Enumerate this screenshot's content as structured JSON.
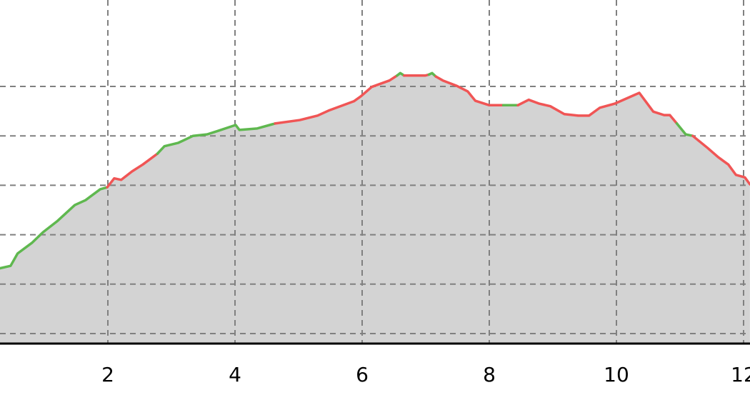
{
  "chart_data": {
    "type": "area",
    "title": "",
    "xlabel": "",
    "ylabel": "",
    "xlim": [
      0.3,
      12.1
    ],
    "ylim": [
      -0.2,
      6.75
    ],
    "grid": true,
    "x_ticks": [
      2,
      4,
      6,
      8,
      10,
      12
    ],
    "x_tick_labels": [
      "2",
      "4",
      "6",
      "8",
      "10",
      "12"
    ],
    "y_grid": [
      0,
      1,
      2,
      3,
      4,
      5
    ],
    "fill_color": "#d3d3d3",
    "colors": {
      "green": "#5fb84f",
      "red": "#f05555"
    },
    "segments": [
      {
        "color": "green",
        "points": [
          [
            0.3,
            1.32
          ],
          [
            0.47,
            1.37
          ],
          [
            0.58,
            1.62
          ],
          [
            0.81,
            1.84
          ],
          [
            0.98,
            2.05
          ],
          [
            1.2,
            2.27
          ],
          [
            1.48,
            2.6
          ],
          [
            1.65,
            2.7
          ],
          [
            1.88,
            2.92
          ],
          [
            1.99,
            2.96
          ]
        ]
      },
      {
        "color": "red",
        "points": [
          [
            1.99,
            2.96
          ],
          [
            2.1,
            3.14
          ],
          [
            2.21,
            3.11
          ],
          [
            2.38,
            3.28
          ],
          [
            2.55,
            3.42
          ],
          [
            2.78,
            3.64
          ]
        ]
      },
      {
        "color": "green",
        "points": [
          [
            2.78,
            3.64
          ],
          [
            2.89,
            3.79
          ],
          [
            3.11,
            3.86
          ],
          [
            3.34,
            4.0
          ],
          [
            3.56,
            4.03
          ],
          [
            3.73,
            4.1
          ],
          [
            4.01,
            4.22
          ],
          [
            4.07,
            4.12
          ],
          [
            4.35,
            4.15
          ],
          [
            4.63,
            4.25
          ]
        ]
      },
      {
        "color": "red",
        "points": [
          [
            4.63,
            4.25
          ],
          [
            5.02,
            4.32
          ],
          [
            5.3,
            4.41
          ],
          [
            5.47,
            4.51
          ],
          [
            5.87,
            4.7
          ],
          [
            5.98,
            4.8
          ],
          [
            6.15,
            4.99
          ],
          [
            6.43,
            5.12
          ],
          [
            6.55,
            5.22
          ]
        ]
      },
      {
        "color": "green",
        "points": [
          [
            6.55,
            5.22
          ],
          [
            6.6,
            5.27
          ],
          [
            6.66,
            5.22
          ]
        ]
      },
      {
        "color": "red",
        "points": [
          [
            6.66,
            5.22
          ],
          [
            6.71,
            5.22
          ],
          [
            6.99,
            5.22
          ],
          [
            7.05,
            5.24
          ]
        ]
      },
      {
        "color": "green",
        "points": [
          [
            7.05,
            5.24
          ],
          [
            7.1,
            5.27
          ],
          [
            7.16,
            5.2
          ]
        ]
      },
      {
        "color": "red",
        "points": [
          [
            7.16,
            5.2
          ],
          [
            7.27,
            5.12
          ],
          [
            7.49,
            5.01
          ],
          [
            7.66,
            4.9
          ],
          [
            7.78,
            4.71
          ],
          [
            8.0,
            4.62
          ],
          [
            8.22,
            4.62
          ]
        ]
      },
      {
        "color": "green",
        "points": [
          [
            8.22,
            4.62
          ],
          [
            8.45,
            4.62
          ]
        ]
      },
      {
        "color": "red",
        "points": [
          [
            8.45,
            4.62
          ],
          [
            8.62,
            4.73
          ],
          [
            8.79,
            4.65
          ],
          [
            8.96,
            4.6
          ],
          [
            9.18,
            4.44
          ],
          [
            9.4,
            4.41
          ],
          [
            9.57,
            4.41
          ],
          [
            9.74,
            4.57
          ],
          [
            9.97,
            4.65
          ],
          [
            10.36,
            4.87
          ],
          [
            10.58,
            4.49
          ],
          [
            10.75,
            4.42
          ],
          [
            10.84,
            4.42
          ],
          [
            10.95,
            4.25
          ]
        ]
      },
      {
        "color": "green",
        "points": [
          [
            10.95,
            4.25
          ],
          [
            11.09,
            4.03
          ],
          [
            11.2,
            4.0
          ]
        ]
      },
      {
        "color": "red",
        "points": [
          [
            11.2,
            4.0
          ],
          [
            11.43,
            3.76
          ],
          [
            11.6,
            3.57
          ],
          [
            11.76,
            3.42
          ],
          [
            11.88,
            3.21
          ],
          [
            12.02,
            3.16
          ],
          [
            12.1,
            3.02
          ]
        ]
      }
    ]
  }
}
